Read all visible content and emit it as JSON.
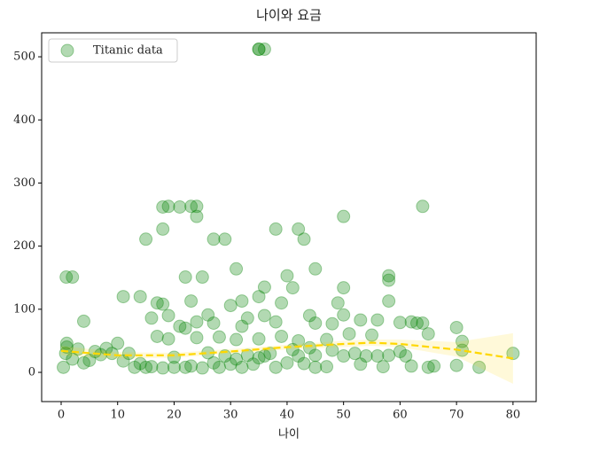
{
  "chart_data": {
    "type": "scatter",
    "title": "나이와 요금",
    "x_label": "나이",
    "xlim": [
      -3.45,
      84.1
    ],
    "ylim": [
      -46.3,
      538
    ],
    "xticks": [
      0,
      10,
      20,
      30,
      40,
      50,
      60,
      70,
      80
    ],
    "yticks": [
      0,
      100,
      200,
      300,
      400,
      500
    ],
    "legend": "upper left",
    "series": [
      {
        "name": "Titanic data",
        "color": "green",
        "x": [
          35,
          36,
          35,
          64,
          50,
          18,
          19,
          21,
          23,
          24,
          24,
          27,
          29,
          15,
          18,
          38,
          42,
          43,
          0.9,
          2,
          22,
          25,
          36,
          45,
          31,
          40,
          50,
          58,
          58,
          14,
          11,
          58,
          17,
          18,
          23,
          32,
          49,
          35,
          41,
          39,
          30,
          4,
          16,
          26,
          27,
          33,
          36,
          44,
          48,
          53,
          60,
          62,
          64,
          65,
          70,
          71,
          71,
          74,
          80,
          70,
          0.8,
          1,
          1,
          3,
          8,
          9,
          10,
          12,
          14,
          16,
          18,
          20,
          22,
          25,
          28,
          30,
          32,
          34,
          36,
          38,
          40,
          42,
          45,
          47,
          50,
          52,
          54,
          56,
          58,
          61,
          63,
          65,
          66,
          19,
          24,
          28,
          31,
          35,
          39,
          42,
          47,
          51,
          55,
          45,
          29,
          26,
          21,
          22,
          17,
          20,
          33,
          37,
          41,
          44,
          0.4,
          2,
          4,
          5,
          6,
          7,
          11,
          13,
          15,
          23,
          27,
          31,
          35,
          43,
          48,
          53,
          57,
          60,
          62,
          19,
          24,
          32,
          38,
          45,
          50,
          56
        ],
        "values": [
          512,
          512,
          512,
          263,
          247,
          262,
          263,
          262,
          263,
          263,
          247,
          211,
          211,
          211,
          227,
          227,
          227,
          211,
          151,
          151,
          151,
          151,
          135,
          164,
          164,
          153,
          134,
          153,
          146,
          120,
          120,
          113,
          110,
          108,
          113,
          113,
          110,
          120,
          134,
          110,
          106,
          81,
          86,
          91,
          78,
          86,
          90,
          90,
          77,
          83,
          79,
          80,
          78,
          61,
          71,
          49,
          35,
          8,
          30,
          11,
          30,
          46,
          40,
          37,
          38,
          30,
          46,
          30,
          14,
          9,
          7,
          8,
          8,
          7,
          8,
          13,
          8,
          13,
          26,
          8,
          15,
          26,
          27,
          9,
          26,
          30,
          26,
          26,
          27,
          26,
          78,
          8,
          10,
          53,
          55,
          56,
          52,
          53,
          57,
          50,
          52,
          61,
          59,
          8,
          26,
          31,
          73,
          70,
          57,
          24,
          27,
          30,
          36,
          39,
          8,
          21,
          15,
          19,
          33,
          28,
          18,
          8,
          8,
          10,
          15,
          21,
          23,
          14,
          35,
          13,
          9,
          33,
          10,
          90,
          80,
          73,
          80,
          78,
          91,
          83
        ]
      }
    ],
    "fit": {
      "color": "gold",
      "x": [
        0,
        10,
        20,
        30,
        40,
        50,
        55,
        60,
        70,
        80
      ],
      "values": [
        34,
        27,
        27,
        33,
        40,
        45,
        47,
        45,
        36,
        22
      ],
      "ci_lower": [
        27,
        22,
        23,
        30,
        36,
        40,
        42,
        40,
        25,
        -18
      ],
      "ci_upper": [
        42,
        32,
        31,
        37,
        44,
        50,
        52,
        52,
        48,
        62
      ]
    }
  }
}
